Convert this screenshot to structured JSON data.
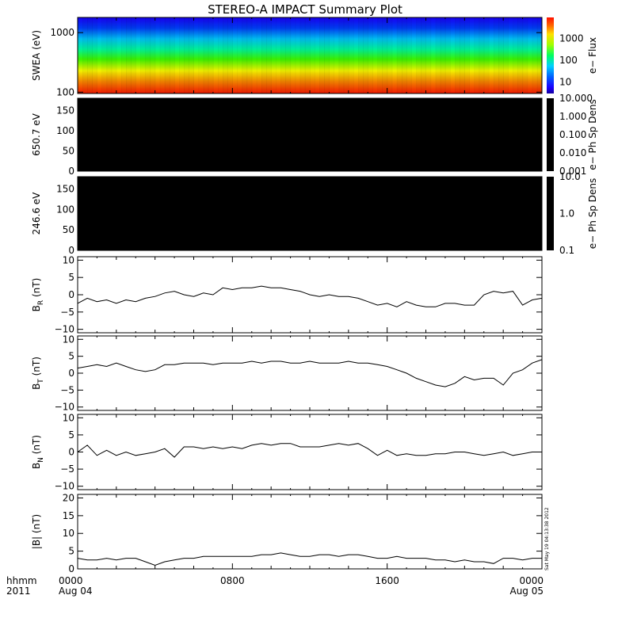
{
  "title": "STEREO-A IMPACT Summary Plot",
  "stamp": "Sat May 19 04:13:38 2012",
  "time_axis": {
    "row1_prefix": "hhmm",
    "row2_prefix": "2011",
    "ticks": [
      {
        "hour": 0,
        "label": "0000",
        "date": "Aug 04"
      },
      {
        "hour": 8,
        "label": "0800",
        "date": ""
      },
      {
        "hour": 16,
        "label": "1600",
        "date": ""
      },
      {
        "hour": 24,
        "label": "0000",
        "date": "Aug 05"
      }
    ]
  },
  "chart_data": [
    {
      "type": "heatmap",
      "ylabel": "SWEA (eV)",
      "yscale": "log",
      "ylim": [
        95,
        1800
      ],
      "yticks": [
        {
          "v": 100,
          "label": "100"
        },
        {
          "v": 1000,
          "label": "1000"
        }
      ],
      "colorbar": {
        "label": "e− Flux",
        "scale": "log",
        "range": [
          3,
          9000
        ],
        "ticks": [
          {
            "v": 10,
            "label": "10"
          },
          {
            "v": 100,
            "label": "100"
          },
          {
            "v": 1000,
            "label": "1000"
          }
        ]
      }
    },
    {
      "type": "heatmap",
      "ylabel": "650.7 eV",
      "ylim": [
        0,
        180
      ],
      "yticks": [
        {
          "v": 0,
          "label": "0"
        },
        {
          "v": 50,
          "label": "50"
        },
        {
          "v": 100,
          "label": "100"
        },
        {
          "v": 150,
          "label": "150"
        }
      ],
      "fill": "#000000",
      "colorbar": {
        "label": "e− Ph Sp Dens",
        "scale": "log",
        "range": [
          0.001,
          10
        ],
        "ticks": [
          {
            "v": 0.001,
            "label": "0.001"
          },
          {
            "v": 0.01,
            "label": "0.010"
          },
          {
            "v": 0.1,
            "label": "0.100"
          },
          {
            "v": 1,
            "label": "1.000"
          },
          {
            "v": 10,
            "label": "10.000"
          }
        ]
      }
    },
    {
      "type": "heatmap",
      "ylabel": "246.6 eV",
      "ylim": [
        0,
        180
      ],
      "yticks": [
        {
          "v": 0,
          "label": "0"
        },
        {
          "v": 50,
          "label": "50"
        },
        {
          "v": 100,
          "label": "100"
        },
        {
          "v": 150,
          "label": "150"
        }
      ],
      "fill": "#000000",
      "colorbar": {
        "label": "e− Ph Sp Dens",
        "scale": "log",
        "range": [
          0.1,
          10
        ],
        "ticks": [
          {
            "v": 0.1,
            "label": "0.1"
          },
          {
            "v": 1,
            "label": "1.0"
          },
          {
            "v": 10,
            "label": "10.0"
          }
        ]
      }
    },
    {
      "type": "line",
      "ylabel": "B",
      "ysub": "R",
      "yunit": " (nT)",
      "ylim": [
        -11,
        11
      ],
      "yticks": [
        {
          "v": -10,
          "label": "−10"
        },
        {
          "v": -5,
          "label": "−5"
        },
        {
          "v": 0,
          "label": "0"
        },
        {
          "v": 5,
          "label": "5"
        },
        {
          "v": 10,
          "label": "10"
        }
      ],
      "x": [
        0,
        0.5,
        1,
        1.5,
        2,
        2.5,
        3,
        3.5,
        4,
        4.5,
        5,
        5.5,
        6,
        6.5,
        7,
        7.5,
        8,
        8.5,
        9,
        9.5,
        10,
        10.5,
        11,
        11.5,
        12,
        12.5,
        13,
        13.5,
        14,
        14.5,
        15,
        15.5,
        16,
        16.5,
        17,
        17.5,
        18,
        18.5,
        19,
        19.5,
        20,
        20.5,
        21,
        21.5,
        22,
        22.5,
        23,
        23.5,
        24
      ],
      "y": [
        -2.5,
        -1,
        -2,
        -1.5,
        -2.5,
        -1.5,
        -2,
        -1,
        -0.5,
        0.5,
        1,
        0,
        -0.5,
        0.5,
        0,
        2,
        1.5,
        2,
        2,
        2.5,
        2,
        2,
        1.5,
        1,
        0,
        -0.5,
        0,
        -0.5,
        -0.5,
        -1,
        -2,
        -3,
        -2.5,
        -3.5,
        -2,
        -3,
        -3.5,
        -3.5,
        -2.5,
        -2.5,
        -3,
        -3,
        0,
        1,
        0.5,
        1,
        -3,
        -1.5,
        -1
      ]
    },
    {
      "type": "line",
      "ylabel": "B",
      "ysub": "T",
      "yunit": " (nT)",
      "ylim": [
        -11,
        11
      ],
      "yticks": [
        {
          "v": -10,
          "label": "−10"
        },
        {
          "v": -5,
          "label": "−5"
        },
        {
          "v": 0,
          "label": "0"
        },
        {
          "v": 5,
          "label": "5"
        },
        {
          "v": 10,
          "label": "10"
        }
      ],
      "x": [
        0,
        0.5,
        1,
        1.5,
        2,
        2.5,
        3,
        3.5,
        4,
        4.5,
        5,
        5.5,
        6,
        6.5,
        7,
        7.5,
        8,
        8.5,
        9,
        9.5,
        10,
        10.5,
        11,
        11.5,
        12,
        12.5,
        13,
        13.5,
        14,
        14.5,
        15,
        15.5,
        16,
        16.5,
        17,
        17.5,
        18,
        18.5,
        19,
        19.5,
        20,
        20.5,
        21,
        21.5,
        22,
        22.5,
        23,
        23.5,
        24
      ],
      "y": [
        1.5,
        2,
        2.5,
        2,
        3,
        2,
        1,
        0.5,
        1,
        2.5,
        2.5,
        3,
        3,
        3,
        2.5,
        3,
        3,
        3,
        3.5,
        3,
        3.5,
        3.5,
        3,
        3,
        3.5,
        3,
        3,
        3,
        3.5,
        3,
        3,
        2.5,
        2,
        1,
        0,
        -1.5,
        -2.5,
        -3.5,
        -4,
        -3,
        -1,
        -2,
        -1.5,
        -1.5,
        -3.5,
        0,
        1,
        3,
        4
      ]
    },
    {
      "type": "line",
      "ylabel": "B",
      "ysub": "N",
      "yunit": " (nT)",
      "ylim": [
        -11,
        11
      ],
      "yticks": [
        {
          "v": -10,
          "label": "−10"
        },
        {
          "v": -5,
          "label": "−5"
        },
        {
          "v": 0,
          "label": "0"
        },
        {
          "v": 5,
          "label": "5"
        },
        {
          "v": 10,
          "label": "10"
        }
      ],
      "x": [
        0,
        0.5,
        1,
        1.5,
        2,
        2.5,
        3,
        3.5,
        4,
        4.5,
        5,
        5.5,
        6,
        6.5,
        7,
        7.5,
        8,
        8.5,
        9,
        9.5,
        10,
        10.5,
        11,
        11.5,
        12,
        12.5,
        13,
        13.5,
        14,
        14.5,
        15,
        15.5,
        16,
        16.5,
        17,
        17.5,
        18,
        18.5,
        19,
        19.5,
        20,
        20.5,
        21,
        21.5,
        22,
        22.5,
        23,
        23.5,
        24
      ],
      "y": [
        0,
        2,
        -1,
        0.5,
        -1,
        0,
        -1,
        -0.5,
        0,
        1,
        -1.5,
        1.5,
        1.5,
        1,
        1.5,
        1,
        1.5,
        1,
        2,
        2.5,
        2,
        2.5,
        2.5,
        1.5,
        1.5,
        1.5,
        2,
        2.5,
        2,
        2.5,
        1,
        -1,
        0.5,
        -1,
        -0.5,
        -1,
        -1,
        -0.5,
        -0.5,
        0,
        0,
        -0.5,
        -1,
        -0.5,
        0,
        -1,
        -0.5,
        0,
        0
      ]
    },
    {
      "type": "line",
      "ylabel": "|B|",
      "ysub": "",
      "yunit": " (nT)",
      "ylim": [
        0,
        21
      ],
      "yticks": [
        {
          "v": 0,
          "label": "0"
        },
        {
          "v": 5,
          "label": "5"
        },
        {
          "v": 10,
          "label": "10"
        },
        {
          "v": 15,
          "label": "15"
        },
        {
          "v": 20,
          "label": "20"
        }
      ],
      "x": [
        0,
        0.5,
        1,
        1.5,
        2,
        2.5,
        3,
        3.5,
        4,
        4.5,
        5,
        5.5,
        6,
        6.5,
        7,
        7.5,
        8,
        8.5,
        9,
        9.5,
        10,
        10.5,
        11,
        11.5,
        12,
        12.5,
        13,
        13.5,
        14,
        14.5,
        15,
        15.5,
        16,
        16.5,
        17,
        17.5,
        18,
        18.5,
        19,
        19.5,
        20,
        20.5,
        21,
        21.5,
        22,
        22.5,
        23,
        23.5,
        24
      ],
      "y": [
        3,
        2.5,
        2.5,
        3,
        2.5,
        3,
        3,
        2,
        1,
        2,
        2.5,
        3,
        3,
        3.5,
        3.5,
        3.5,
        3.5,
        3.5,
        3.5,
        4,
        4,
        4.5,
        4,
        3.5,
        3.5,
        4,
        4,
        3.5,
        4,
        4,
        3.5,
        3,
        3,
        3.5,
        3,
        3,
        3,
        2.5,
        2.5,
        2,
        2.5,
        2,
        2,
        1.5,
        3,
        3,
        2.5,
        3,
        3
      ]
    }
  ]
}
